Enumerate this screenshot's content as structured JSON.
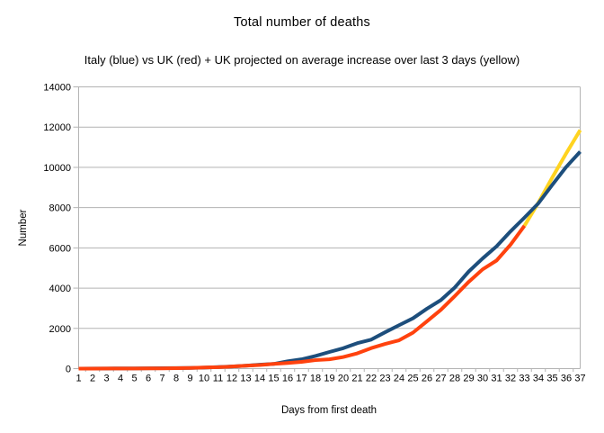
{
  "chart_data": {
    "type": "line",
    "title": "Total number of deaths",
    "subtitle": "Italy (blue) vs UK (red) + UK projected on average increase over last 3 days (yellow)",
    "xlabel": "Days from first death",
    "ylabel": "Number",
    "legend": "none",
    "grid": "horizontal",
    "ylim": [
      0,
      14000
    ],
    "y_tick_step": 2000,
    "y_ticks": [
      0,
      2000,
      4000,
      6000,
      8000,
      10000,
      12000,
      14000
    ],
    "x_ticks": [
      1,
      2,
      3,
      4,
      5,
      6,
      7,
      8,
      9,
      10,
      11,
      12,
      13,
      14,
      15,
      16,
      17,
      18,
      19,
      20,
      21,
      22,
      23,
      24,
      25,
      26,
      27,
      28,
      29,
      30,
      31,
      32,
      33,
      34,
      35,
      36,
      37
    ],
    "series": [
      {
        "name": "Italy",
        "color": "#1d4e7c",
        "x_start": 1,
        "draw_order": 2,
        "values": [
          2,
          3,
          7,
          10,
          12,
          17,
          21,
          29,
          34,
          52,
          79,
          107,
          148,
          197,
          233,
          366,
          463,
          631,
          827,
          1016,
          1266,
          1441,
          1809,
          2158,
          2503,
          2978,
          3405,
          4032,
          4825,
          5476,
          6077,
          6820,
          7503,
          8215,
          9134,
          10023,
          10779
        ]
      },
      {
        "name": "UK",
        "color": "#ff420e",
        "x_start": 1,
        "draw_order": 3,
        "values": [
          1,
          2,
          3,
          6,
          8,
          10,
          11,
          21,
          35,
          55,
          71,
          104,
          144,
          177,
          233,
          281,
          335,
          422,
          465,
          578,
          759,
          1019,
          1228,
          1408,
          1789,
          2352,
          2921,
          3605,
          4313,
          4934,
          5373,
          6159,
          7097
        ]
      },
      {
        "name": "UK projected",
        "color": "#ffd320",
        "x_start": 33,
        "draw_order": 1,
        "values": [
          7097,
          8250,
          9500,
          10700,
          11850
        ]
      }
    ],
    "colors": {
      "grid": "#b3b3b3",
      "axis": "#b3b3b3",
      "text": "#000000",
      "background": "#ffffff"
    }
  }
}
